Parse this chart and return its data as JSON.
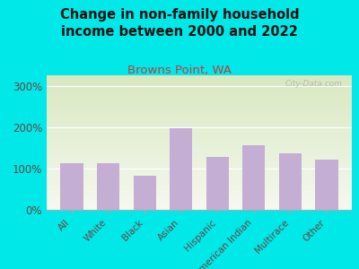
{
  "title": "Change in non-family household\nincome between 2000 and 2022",
  "subtitle": "Browns Point, WA",
  "categories": [
    "All",
    "White",
    "Black",
    "Asian",
    "Hispanic",
    "American Indian",
    "Multirace",
    "Other"
  ],
  "values": [
    112,
    112,
    83,
    197,
    127,
    157,
    137,
    122
  ],
  "bar_color": "#c4aed4",
  "title_fontsize": 10.5,
  "subtitle_fontsize": 9.5,
  "subtitle_color": "#b84040",
  "title_color": "#111111",
  "tick_label_color": "#664444",
  "ytick_labels": [
    "0%",
    "100%",
    "200%",
    "300%"
  ],
  "ytick_values": [
    0,
    100,
    200,
    300
  ],
  "ylim": [
    0,
    325
  ],
  "background_outer": "#00e8e8",
  "background_inner_top": "#d8e8c0",
  "background_inner_bottom": "#f5f8f0",
  "watermark": "City-Data.com",
  "xlabel_fontsize": 7.5,
  "ylabel_fontsize": 8.5
}
